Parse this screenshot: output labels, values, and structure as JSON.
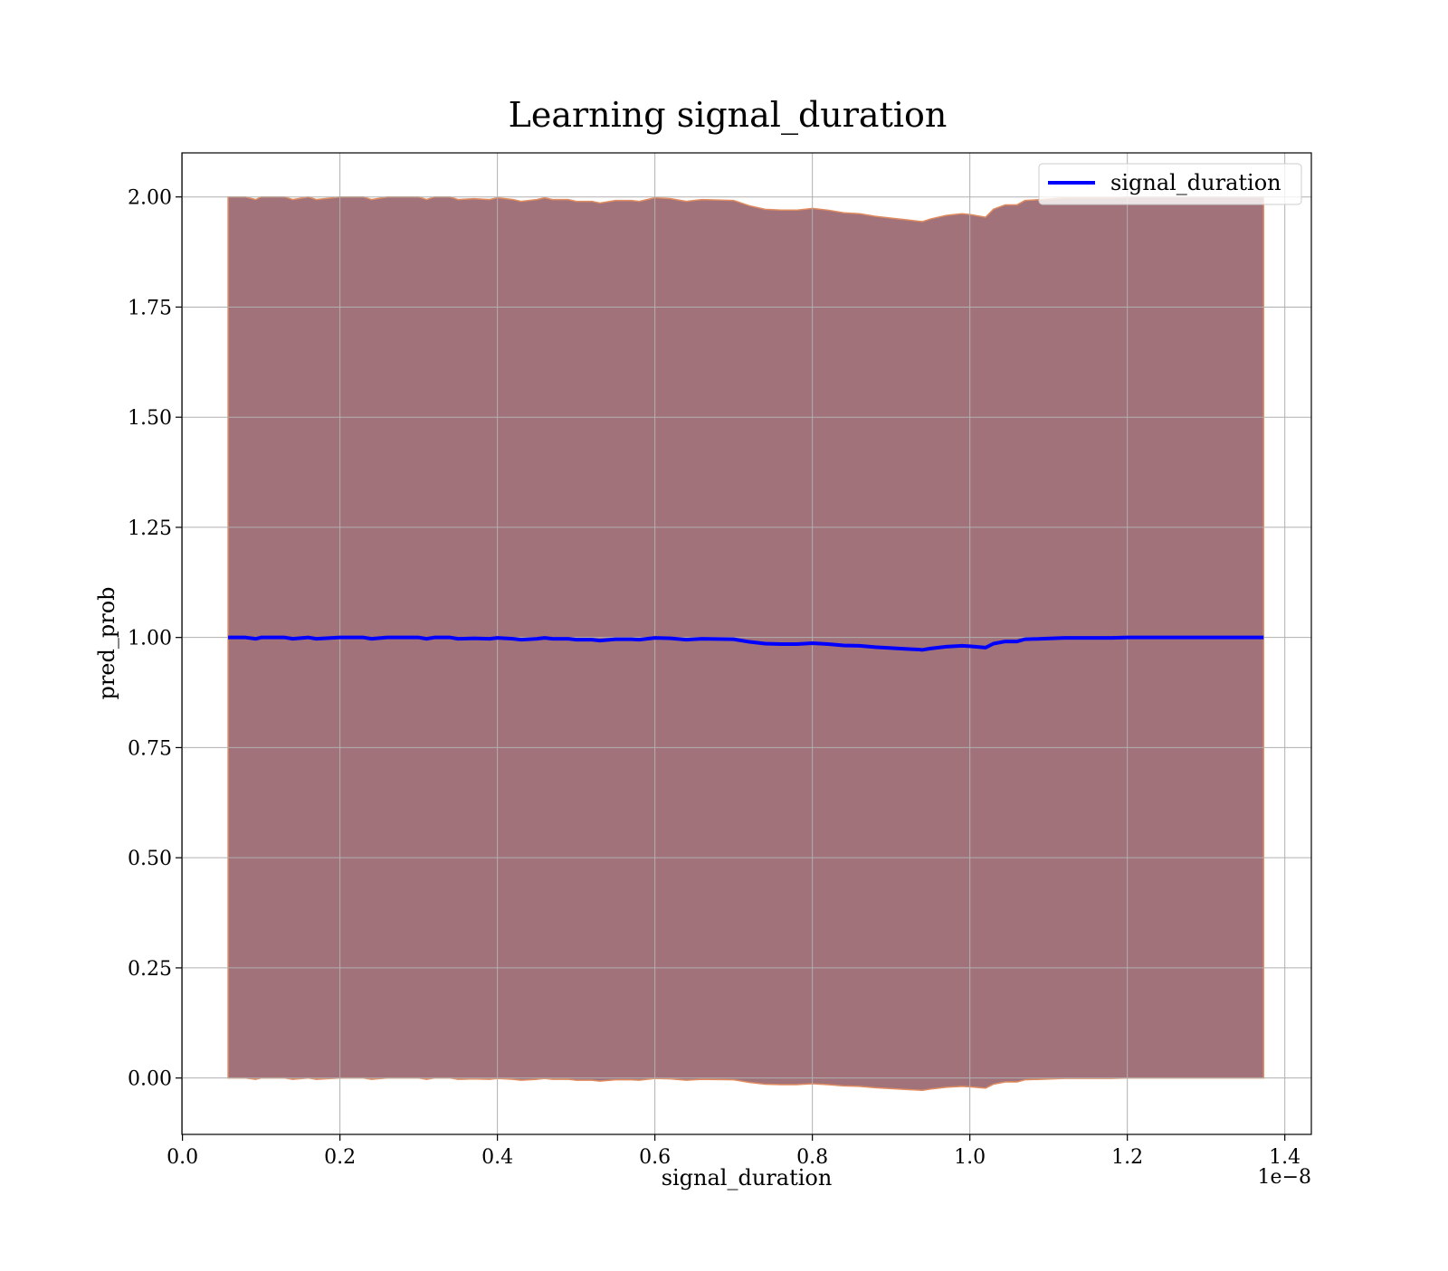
{
  "chart_data": {
    "type": "line",
    "title": "Learning signal_duration",
    "xlabel": "signal_duration",
    "ylabel": "pred_prob",
    "x_offset_label": "1e−8",
    "xlim": [
      -0.0007,
      1.4337
    ],
    "ylim": [
      -0.128,
      2.1
    ],
    "x_ticks": [
      0.0,
      0.2,
      0.4,
      0.6,
      0.8,
      1.0,
      1.2,
      1.4
    ],
    "x_tick_labels": [
      "0.0",
      "0.2",
      "0.4",
      "0.6",
      "0.8",
      "1.0",
      "1.2",
      "1.4"
    ],
    "y_ticks": [
      0.0,
      0.25,
      0.5,
      0.75,
      1.0,
      1.25,
      1.5,
      1.75,
      2.0
    ],
    "y_tick_labels": [
      "0.00",
      "0.25",
      "0.50",
      "0.75",
      "1.00",
      "1.25",
      "1.50",
      "1.75",
      "2.00"
    ],
    "grid": true,
    "legend_position": "top-right",
    "series": [
      {
        "name": "signal_duration",
        "color": "#0000ff",
        "x": [
          0.058,
          0.08,
          0.093,
          0.1,
          0.13,
          0.14,
          0.16,
          0.17,
          0.2,
          0.23,
          0.24,
          0.26,
          0.3,
          0.31,
          0.32,
          0.34,
          0.35,
          0.37,
          0.39,
          0.4,
          0.42,
          0.43,
          0.45,
          0.46,
          0.47,
          0.49,
          0.5,
          0.52,
          0.53,
          0.55,
          0.57,
          0.58,
          0.6,
          0.62,
          0.64,
          0.66,
          0.7,
          0.72,
          0.74,
          0.76,
          0.78,
          0.8,
          0.82,
          0.84,
          0.86,
          0.88,
          0.9,
          0.92,
          0.94,
          0.95,
          0.97,
          0.99,
          1.0,
          1.02,
          1.03,
          1.045,
          1.06,
          1.07,
          1.09,
          1.12,
          1.15,
          1.18,
          1.2,
          1.25,
          1.3,
          1.35,
          1.373
        ],
        "y": [
          1.0,
          1.0,
          0.997,
          1.0,
          1.0,
          0.997,
          1.0,
          0.997,
          1.0,
          1.0,
          0.997,
          1.0,
          1.0,
          0.997,
          1.0,
          1.0,
          0.997,
          0.998,
          0.997,
          0.999,
          0.997,
          0.995,
          0.997,
          0.999,
          0.997,
          0.997,
          0.995,
          0.995,
          0.993,
          0.996,
          0.996,
          0.995,
          0.999,
          0.998,
          0.995,
          0.997,
          0.996,
          0.99,
          0.986,
          0.985,
          0.985,
          0.987,
          0.985,
          0.982,
          0.981,
          0.978,
          0.976,
          0.974,
          0.972,
          0.975,
          0.979,
          0.981,
          0.98,
          0.977,
          0.986,
          0.991,
          0.991,
          0.996,
          0.997,
          0.999,
          0.999,
          0.999,
          1.0,
          1.0,
          1.0,
          1.0,
          1.0
        ]
      }
    ],
    "band": {
      "fill_color": "#a1727a",
      "edge_color": "#e08c60",
      "lower": "2*mean-1",
      "upper": "1+(1-mean)"
    }
  }
}
